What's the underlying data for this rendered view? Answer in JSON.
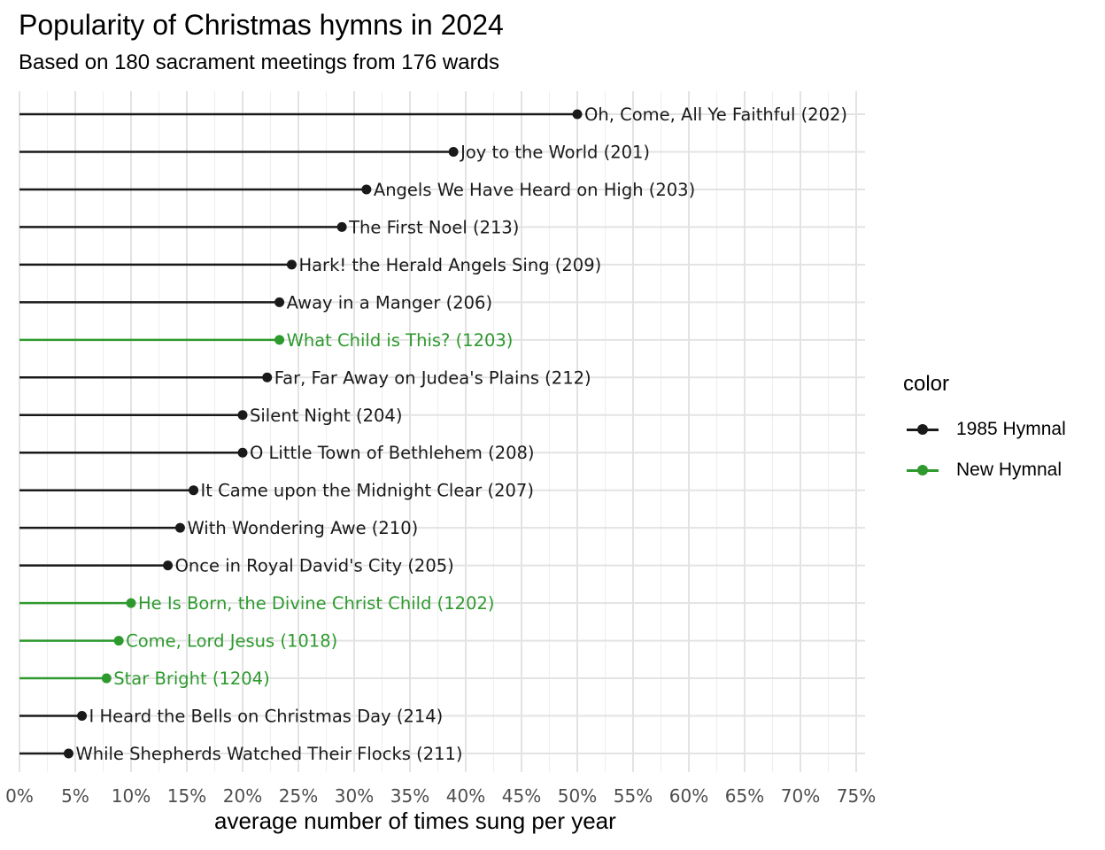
{
  "chart_data": {
    "type": "lollipop",
    "title": "Popularity of Christmas hymns in 2024",
    "subtitle": "Based on 180 sacrament meetings from 176 wards",
    "xlabel": "average number of times sung per year",
    "xlim": [
      0,
      0.75
    ],
    "x_ticks": [
      "0%",
      "5%",
      "10%",
      "15%",
      "20%",
      "25%",
      "30%",
      "35%",
      "40%",
      "45%",
      "50%",
      "55%",
      "60%",
      "65%",
      "70%",
      "75%"
    ],
    "grid": true,
    "legend": {
      "title": "color",
      "position": "right",
      "entries": [
        {
          "label": "1985 Hymnal",
          "color": "#1a1a1a"
        },
        {
          "label": "New Hymnal",
          "color": "#2e9a2e"
        }
      ]
    },
    "points": [
      {
        "label": "Oh, Come, All Ye Faithful (202)",
        "value": 0.5,
        "group": "1985 Hymnal"
      },
      {
        "label": "Joy to the World (201)",
        "value": 0.389,
        "group": "1985 Hymnal"
      },
      {
        "label": "Angels We Have Heard on High (203)",
        "value": 0.311,
        "group": "1985 Hymnal"
      },
      {
        "label": "The First Noel (213)",
        "value": 0.289,
        "group": "1985 Hymnal"
      },
      {
        "label": "Hark! the Herald Angels Sing (209)",
        "value": 0.244,
        "group": "1985 Hymnal"
      },
      {
        "label": "Away in a Manger (206)",
        "value": 0.233,
        "group": "1985 Hymnal"
      },
      {
        "label": "What Child is This? (1203)",
        "value": 0.233,
        "group": "New Hymnal"
      },
      {
        "label": "Far, Far Away on Judea's Plains (212)",
        "value": 0.222,
        "group": "1985 Hymnal"
      },
      {
        "label": "Silent Night (204)",
        "value": 0.2,
        "group": "1985 Hymnal"
      },
      {
        "label": "O Little Town of Bethlehem (208)",
        "value": 0.2,
        "group": "1985 Hymnal"
      },
      {
        "label": "It Came upon the Midnight Clear (207)",
        "value": 0.156,
        "group": "1985 Hymnal"
      },
      {
        "label": "With Wondering Awe (210)",
        "value": 0.144,
        "group": "1985 Hymnal"
      },
      {
        "label": "Once in Royal David's City (205)",
        "value": 0.133,
        "group": "1985 Hymnal"
      },
      {
        "label": "He Is Born, the Divine Christ Child (1202)",
        "value": 0.1,
        "group": "New Hymnal"
      },
      {
        "label": "Come, Lord Jesus (1018)",
        "value": 0.089,
        "group": "New Hymnal"
      },
      {
        "label": "Star Bright (1204)",
        "value": 0.078,
        "group": "New Hymnal"
      },
      {
        "label": "I Heard the Bells on Christmas Day (214)",
        "value": 0.056,
        "group": "1985 Hymnal"
      },
      {
        "label": "While Shepherds Watched Their Flocks (211)",
        "value": 0.044,
        "group": "1985 Hymnal"
      }
    ]
  }
}
